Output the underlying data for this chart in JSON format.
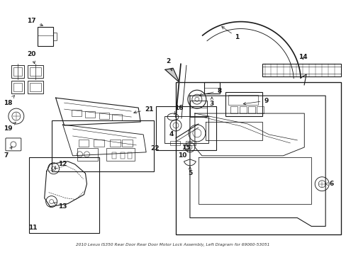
{
  "bg_color": "#ffffff",
  "line_color": "#1a1a1a",
  "title": "2010 Lexus IS350 Rear Door Rear Door Motor Lock Assembly, Left Diagram for 69060-53051",
  "figsize": [
    4.89,
    3.6
  ],
  "dpi": 100,
  "xlim": [
    0,
    489
  ],
  "ylim": [
    0,
    360
  ]
}
